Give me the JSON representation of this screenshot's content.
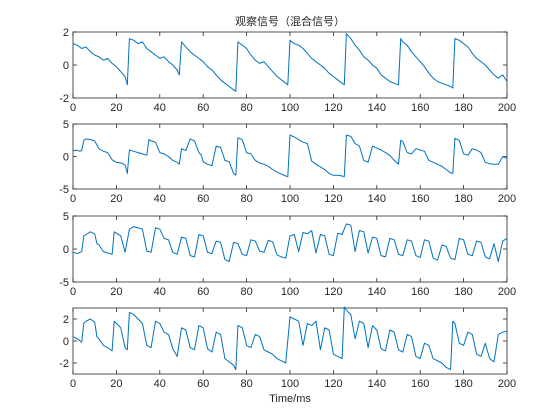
{
  "colors": {
    "line": "#0072BD",
    "axes": "#262626"
  },
  "chart_data": [
    {
      "type": "line",
      "title": "观察信号（混合信号）",
      "xlabel": "",
      "ylabel": "",
      "xlim": [
        0,
        200
      ],
      "ylim": [
        -2,
        2
      ],
      "xticks": [
        0,
        20,
        40,
        60,
        80,
        100,
        120,
        140,
        160,
        180,
        200
      ],
      "yticks": [
        -2,
        0,
        2
      ],
      "series": [
        {
          "x": [
            0,
            2,
            4,
            6,
            8,
            10,
            12,
            14,
            16,
            18,
            20,
            22,
            24,
            25,
            26,
            28,
            30,
            32,
            34,
            36,
            38,
            40,
            42,
            44,
            46,
            48,
            49,
            50,
            52,
            54,
            56,
            58,
            60,
            62,
            64,
            66,
            68,
            70,
            72,
            74,
            75,
            76,
            78,
            80,
            82,
            84,
            86,
            88,
            90,
            92,
            94,
            96,
            98,
            99,
            100,
            102,
            104,
            106,
            108,
            110,
            112,
            114,
            116,
            118,
            120,
            122,
            124,
            125,
            126,
            128,
            130,
            132,
            134,
            136,
            138,
            140,
            142,
            144,
            146,
            148,
            150,
            151,
            152,
            154,
            156,
            158,
            160,
            162,
            164,
            166,
            168,
            170,
            172,
            174,
            175,
            176,
            178,
            180,
            182,
            184,
            186,
            188,
            190,
            192,
            194,
            196,
            198,
            200
          ],
          "y": [
            1.3,
            1.2,
            1.0,
            1.1,
            0.8,
            0.6,
            0.5,
            0.3,
            0.4,
            0.1,
            -0.1,
            -0.4,
            -0.7,
            -1.2,
            1.6,
            1.5,
            1.3,
            1.4,
            1.0,
            0.8,
            0.6,
            0.4,
            0.5,
            0.2,
            0.0,
            -0.3,
            -0.6,
            1.4,
            1.1,
            0.8,
            0.6,
            0.4,
            0.2,
            -0.1,
            -0.3,
            -0.6,
            -0.9,
            -1.1,
            -1.3,
            -1.5,
            -1.6,
            1.4,
            1.2,
            1.0,
            0.6,
            0.3,
            0.1,
            0.2,
            -0.1,
            -0.4,
            -0.7,
            -0.9,
            -1.1,
            -1.2,
            1.5,
            1.3,
            1.2,
            1.0,
            0.7,
            0.4,
            0.2,
            0.0,
            -0.2,
            -0.5,
            -0.7,
            -0.9,
            -1.1,
            -1.2,
            1.9,
            1.6,
            1.2,
            0.9,
            0.5,
            0.3,
            0.0,
            -0.2,
            -0.6,
            -0.8,
            -1.0,
            -1.1,
            -1.2,
            1.6,
            1.4,
            1.2,
            0.8,
            0.5,
            0.2,
            -0.1,
            -0.5,
            -0.8,
            -1.0,
            -1.1,
            -1.2,
            -1.3,
            -1.4,
            1.6,
            1.5,
            1.3,
            1.1,
            0.7,
            0.4,
            0.2,
            0.0,
            -0.3,
            -0.6,
            -0.8,
            -0.6,
            -1.0
          ]
        }
      ]
    },
    {
      "type": "line",
      "title": "",
      "xlabel": "",
      "ylabel": "",
      "xlim": [
        0,
        200
      ],
      "ylim": [
        -5,
        5
      ],
      "xticks": [
        0,
        20,
        40,
        60,
        80,
        100,
        120,
        140,
        160,
        180,
        200
      ],
      "yticks": [
        -5,
        0,
        5
      ],
      "series": [
        {
          "x": [
            0,
            1,
            2,
            3,
            4,
            5,
            6,
            8,
            10,
            12,
            13,
            14,
            16,
            18,
            20,
            22,
            23,
            24,
            25,
            26,
            28,
            30,
            32,
            34,
            35,
            36,
            38,
            40,
            42,
            44,
            46,
            48,
            49,
            50,
            52,
            54,
            56,
            58,
            59,
            60,
            62,
            64,
            66,
            68,
            70,
            72,
            74,
            75,
            76,
            78,
            80,
            82,
            84,
            86,
            88,
            90,
            92,
            94,
            96,
            98,
            99,
            100,
            102,
            104,
            106,
            108,
            110,
            112,
            114,
            116,
            118,
            120,
            122,
            124,
            125,
            126,
            128,
            130,
            132,
            134,
            136,
            138,
            140,
            142,
            144,
            146,
            148,
            150,
            151,
            152,
            154,
            156,
            158,
            160,
            162,
            164,
            166,
            168,
            170,
            172,
            174,
            175,
            176,
            178,
            180,
            182,
            184,
            186,
            188,
            190,
            192,
            194,
            196,
            198,
            200
          ],
          "y": [
            1.0,
            0.9,
            1.0,
            0.8,
            0.9,
            2.5,
            2.7,
            2.6,
            2.4,
            1.2,
            1.0,
            0.8,
            0.6,
            -0.5,
            -0.9,
            -1.0,
            -1.1,
            -1.3,
            -2.6,
            1.0,
            0.8,
            0.6,
            0.4,
            0.2,
            2.6,
            2.4,
            2.2,
            0.6,
            0.4,
            0.0,
            -0.6,
            -0.9,
            -1.2,
            1.2,
            0.9,
            2.7,
            2.4,
            0.6,
            0.3,
            -0.8,
            -1.2,
            -1.4,
            1.6,
            1.4,
            -0.6,
            -0.8,
            -2.6,
            -2.9,
            2.9,
            2.6,
            0.6,
            0.4,
            -0.6,
            -1.0,
            -1.2,
            -1.5,
            -2.0,
            -2.4,
            -2.7,
            -3.0,
            -3.1,
            3.3,
            3.0,
            2.6,
            2.2,
            2.0,
            -0.7,
            -1.2,
            -1.6,
            -2.0,
            -2.6,
            -2.9,
            -2.9,
            -3.0,
            -3.1,
            3.3,
            3.1,
            2.0,
            1.6,
            -0.6,
            -0.9,
            1.6,
            1.3,
            1.0,
            0.6,
            0.2,
            -0.6,
            -1.2,
            2.5,
            2.3,
            0.6,
            0.4,
            1.2,
            1.0,
            0.8,
            -0.6,
            -0.9,
            -1.2,
            -1.5,
            -2.0,
            -2.5,
            -2.6,
            2.8,
            2.5,
            0.4,
            0.2,
            1.2,
            1.0,
            0.6,
            -0.9,
            -1.1,
            -1.2,
            -1.2,
            0.0,
            -0.3
          ]
        }
      ]
    },
    {
      "type": "line",
      "title": "",
      "xlabel": "",
      "ylabel": "",
      "xlim": [
        0,
        200
      ],
      "ylim": [
        -5,
        5
      ],
      "xticks": [
        0,
        20,
        40,
        60,
        80,
        100,
        120,
        140,
        160,
        180,
        200
      ],
      "yticks": [
        -5,
        0,
        5
      ],
      "series": [
        {
          "x": [
            0,
            2,
            4,
            5,
            6,
            8,
            10,
            11,
            12,
            14,
            16,
            18,
            19,
            20,
            22,
            24,
            26,
            28,
            30,
            32,
            34,
            36,
            38,
            40,
            42,
            44,
            46,
            48,
            50,
            52,
            54,
            56,
            58,
            60,
            62,
            64,
            66,
            68,
            70,
            72,
            74,
            76,
            78,
            80,
            82,
            84,
            86,
            88,
            90,
            92,
            94,
            96,
            98,
            100,
            102,
            104,
            106,
            108,
            110,
            112,
            114,
            116,
            118,
            120,
            122,
            124,
            126,
            128,
            130,
            132,
            134,
            136,
            138,
            140,
            142,
            144,
            146,
            148,
            150,
            152,
            154,
            156,
            158,
            160,
            162,
            164,
            166,
            168,
            170,
            172,
            174,
            176,
            178,
            180,
            182,
            184,
            186,
            188,
            190,
            192,
            194,
            196,
            198,
            200
          ],
          "y": [
            -0.5,
            -0.7,
            -0.4,
            2.0,
            2.2,
            2.6,
            2.3,
            0.8,
            0.6,
            -0.4,
            -0.6,
            -0.8,
            2.6,
            2.4,
            2.0,
            -0.5,
            3.0,
            3.4,
            3.2,
            3.0,
            -0.3,
            -0.5,
            3.2,
            3.0,
            1.6,
            1.4,
            -0.5,
            -0.8,
            1.8,
            1.6,
            -1.0,
            -1.2,
            2.2,
            2.0,
            -0.5,
            -0.7,
            1.2,
            1.0,
            -1.6,
            -1.9,
            1.0,
            0.8,
            -0.8,
            -1.0,
            1.4,
            1.2,
            -0.3,
            -0.5,
            1.3,
            1.1,
            -0.9,
            -1.2,
            -1.4,
            2.0,
            2.2,
            -0.4,
            2.5,
            2.3,
            2.8,
            -0.6,
            2.2,
            2.0,
            -0.8,
            -1.0,
            2.4,
            2.2,
            3.8,
            3.6,
            -0.4,
            2.8,
            2.6,
            -0.6,
            1.8,
            1.6,
            -1.0,
            -1.2,
            1.6,
            1.4,
            -0.8,
            -1.0,
            1.4,
            1.2,
            -1.0,
            -1.3,
            1.4,
            1.2,
            -1.4,
            -1.7,
            0.6,
            0.4,
            -1.4,
            -1.6,
            1.6,
            1.4,
            -0.8,
            -1.0,
            1.2,
            1.0,
            -1.2,
            -1.5,
            0.8,
            -1.9,
            1.2,
            1.6
          ]
        }
      ]
    },
    {
      "type": "line",
      "title": "",
      "xlabel": "Time/ms",
      "ylabel": "",
      "xlim": [
        0,
        200
      ],
      "ylim": [
        -3,
        3
      ],
      "xticks": [
        0,
        20,
        40,
        60,
        80,
        100,
        120,
        140,
        160,
        180,
        200
      ],
      "yticks": [
        -2,
        0,
        2
      ],
      "series": [
        {
          "x": [
            0,
            2,
            4,
            5,
            6,
            8,
            10,
            11,
            12,
            14,
            16,
            18,
            19,
            20,
            22,
            24,
            25,
            26,
            28,
            30,
            32,
            34,
            36,
            38,
            40,
            42,
            44,
            46,
            48,
            50,
            52,
            54,
            56,
            58,
            60,
            62,
            64,
            66,
            68,
            70,
            72,
            74,
            75,
            76,
            78,
            80,
            82,
            84,
            86,
            88,
            90,
            92,
            94,
            96,
            98,
            100,
            102,
            104,
            106,
            108,
            110,
            112,
            114,
            116,
            118,
            120,
            122,
            124,
            125,
            126,
            128,
            130,
            132,
            134,
            136,
            138,
            140,
            142,
            144,
            146,
            148,
            150,
            152,
            154,
            156,
            158,
            160,
            162,
            164,
            166,
            168,
            170,
            172,
            174,
            175,
            176,
            178,
            180,
            182,
            184,
            186,
            188,
            190,
            192,
            194,
            196,
            198,
            200
          ],
          "y": [
            0.4,
            0.2,
            -0.1,
            1.6,
            1.8,
            2.0,
            1.7,
            0.4,
            0.2,
            -0.4,
            -0.6,
            -0.9,
            1.8,
            1.6,
            1.2,
            -0.6,
            -0.8,
            2.6,
            2.4,
            2.0,
            1.6,
            -0.4,
            -0.6,
            1.8,
            1.6,
            0.8,
            0.6,
            -0.7,
            -1.4,
            1.2,
            1.0,
            -0.6,
            -0.8,
            1.4,
            1.2,
            -0.7,
            -1.0,
            0.8,
            0.6,
            -1.6,
            -1.9,
            -2.2,
            -2.6,
            1.4,
            1.2,
            -0.4,
            -0.6,
            0.6,
            0.4,
            -0.8,
            -1.0,
            -1.2,
            -1.6,
            -1.8,
            -2.0,
            2.2,
            2.0,
            1.8,
            -0.4,
            1.6,
            1.4,
            1.8,
            -0.8,
            1.2,
            1.0,
            -1.2,
            -1.4,
            -1.6,
            3.1,
            2.8,
            2.4,
            0.2,
            1.8,
            1.6,
            -0.6,
            1.4,
            1.0,
            -0.7,
            -0.9,
            1.0,
            0.8,
            -0.8,
            -1.0,
            0.6,
            0.4,
            -1.4,
            -1.6,
            -0.2,
            -0.4,
            -1.6,
            -1.8,
            -2.0,
            -2.4,
            -2.6,
            1.8,
            1.6,
            -0.2,
            -0.4,
            0.8,
            0.6,
            -1.2,
            -1.4,
            -0.2,
            -1.6,
            -1.9,
            0.6,
            0.8,
            0.9
          ]
        }
      ]
    }
  ]
}
